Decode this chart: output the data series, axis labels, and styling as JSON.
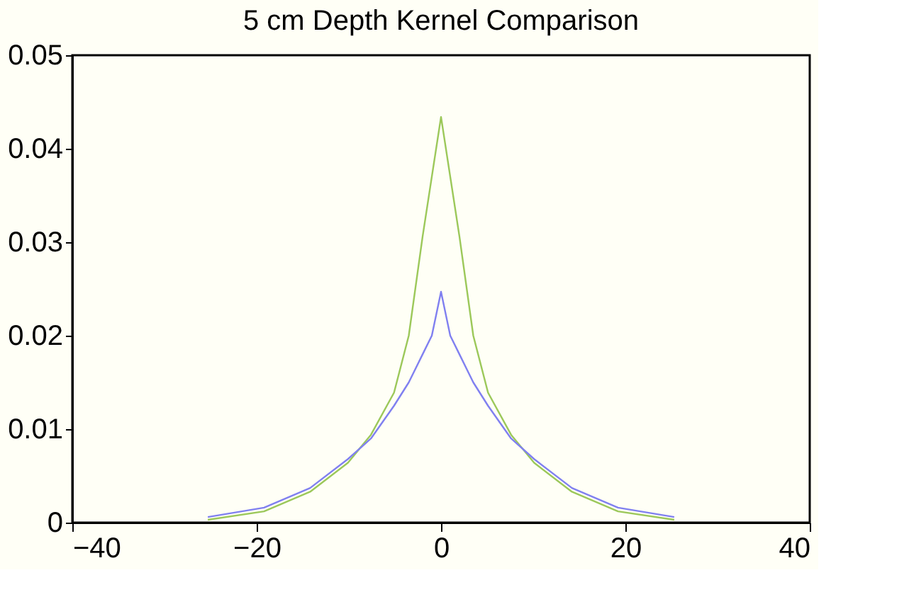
{
  "chart_data": {
    "type": "line",
    "title": "5 cm Depth Kernel Comparison",
    "xlim": [
      -40,
      40
    ],
    "xticks": [
      -40,
      -20,
      0,
      20,
      40
    ],
    "ylim": [
      0,
      0.05
    ],
    "yticks": [
      0,
      0.01,
      0.02,
      0.03,
      0.04,
      0.05
    ],
    "grid": false,
    "series": [
      {
        "color": "#9cc85a",
        "x": [
          -25.3,
          -19.2,
          -14.2,
          -10.1,
          -7.6,
          -5.1,
          -3.5,
          -2.0,
          0,
          2.0,
          3.5,
          5.1,
          7.6,
          10.1,
          14.2,
          19.2,
          25.3
        ],
        "values": [
          0.0003,
          0.0012,
          0.0033,
          0.0064,
          0.0094,
          0.0139,
          0.02,
          0.0306,
          0.0434,
          0.0306,
          0.02,
          0.0139,
          0.0094,
          0.0064,
          0.0033,
          0.0012,
          0.0003
        ]
      },
      {
        "color": "#8080f0",
        "x": [
          -25.3,
          -19.2,
          -14.2,
          -10.1,
          -7.6,
          -5.1,
          -3.5,
          -2.0,
          -1.0,
          0,
          1.0,
          2.0,
          3.5,
          5.1,
          7.6,
          10.1,
          14.2,
          19.2,
          25.3
        ],
        "values": [
          0.0006,
          0.0016,
          0.0037,
          0.0068,
          0.009,
          0.0125,
          0.015,
          0.018,
          0.02,
          0.0247,
          0.02,
          0.018,
          0.015,
          0.0125,
          0.009,
          0.0068,
          0.0037,
          0.0016,
          0.0006
        ]
      }
    ]
  }
}
